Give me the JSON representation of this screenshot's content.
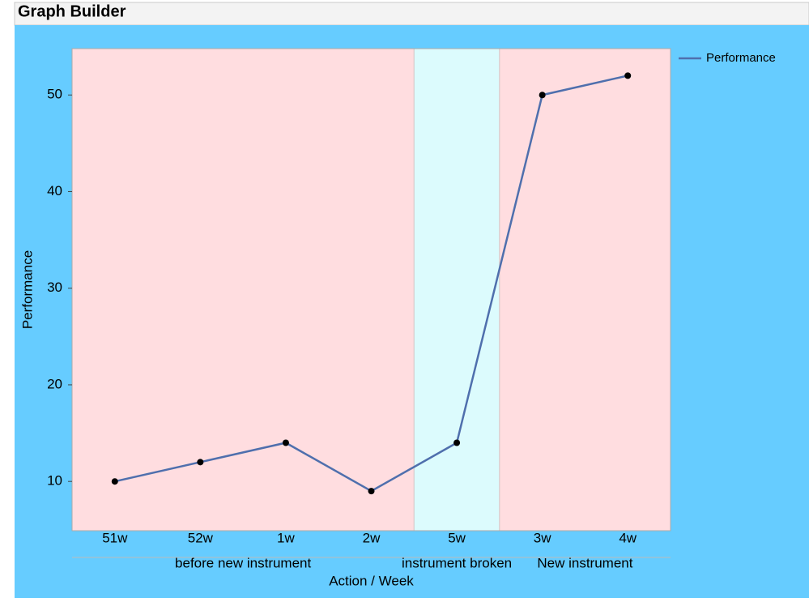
{
  "window_title": "Graph Builder",
  "chart_data": {
    "type": "line",
    "y_label": "Performance",
    "x_label": "Action / Week",
    "groups": [
      {
        "name": "before new instrument",
        "color": "#ffdde0",
        "categories": [
          "51w",
          "52w",
          "1w",
          "2w"
        ]
      },
      {
        "name": "instrument broken",
        "color": "#dcfbfd",
        "categories": [
          "5w"
        ]
      },
      {
        "name": "New instrument",
        "color": "#ffdde0",
        "categories": [
          "3w",
          "4w"
        ]
      }
    ],
    "series": [
      {
        "name": "Performance",
        "color": "#4f6fad",
        "marker_color": "#000000",
        "values": [
          10,
          12,
          14,
          9,
          14,
          50,
          52
        ]
      }
    ],
    "ylim": [
      4.9,
      54.8
    ],
    "yticks": [
      10,
      20,
      30,
      40,
      50
    ],
    "grid": false,
    "legend": "right"
  }
}
